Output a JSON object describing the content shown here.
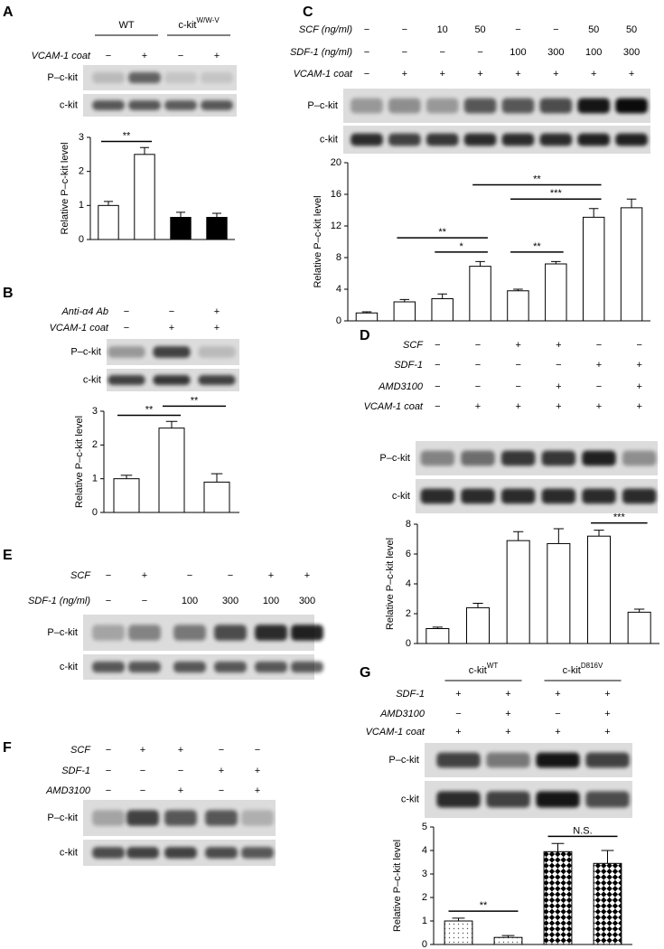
{
  "panels": [
    {
      "letter": "A",
      "headers": [
        {
          "text": "WT",
          "lanes": [
            0,
            1
          ]
        },
        {
          "text": "c-kit",
          "sup": "W/W-V",
          "lanes": [
            2,
            3
          ]
        }
      ],
      "conditions": [
        {
          "label": "VCAM-1 coat",
          "marks": [
            "−",
            "+",
            "−",
            "+"
          ]
        }
      ],
      "blot_labels": [
        "P–c-kit",
        "c-kit"
      ]
    },
    {
      "letter": "B",
      "conditions": [
        {
          "label": "Anti-α4 Ab",
          "marks": [
            "−",
            "−",
            "+"
          ]
        },
        {
          "label": "VCAM-1 coat",
          "marks": [
            "−",
            "+",
            "+"
          ]
        }
      ],
      "blot_labels": [
        "P–c-kit",
        "c-kit"
      ]
    },
    {
      "letter": "C",
      "conditions": [
        {
          "label": "SCF (ng/ml)",
          "marks": [
            "−",
            "−",
            "10",
            "50",
            "−",
            "−",
            "50",
            "50"
          ]
        },
        {
          "label": "SDF-1 (ng/ml)",
          "marks": [
            "−",
            "−",
            "−",
            "−",
            "100",
            "300",
            "100",
            "300"
          ]
        },
        {
          "label": "VCAM-1 coat",
          "marks": [
            "−",
            "+",
            "+",
            "+",
            "+",
            "+",
            "+",
            "+"
          ]
        }
      ],
      "blot_labels": [
        "P–c-kit",
        "c-kit"
      ]
    },
    {
      "letter": "D",
      "conditions": [
        {
          "label": "SCF",
          "marks": [
            "−",
            "−",
            "+",
            "+",
            "−",
            "−"
          ]
        },
        {
          "label": "SDF-1",
          "marks": [
            "−",
            "−",
            "−",
            "−",
            "+",
            "+"
          ]
        },
        {
          "label": "AMD3100",
          "marks": [
            "−",
            "−",
            "−",
            "+",
            "−",
            "+"
          ]
        },
        {
          "label": "VCAM-1 coat",
          "marks": [
            "−",
            "+",
            "+",
            "+",
            "+",
            "+"
          ]
        }
      ],
      "blot_labels": [
        "P–c-kit",
        "c-kit"
      ]
    },
    {
      "letter": "E",
      "conditions": [
        {
          "label": "SCF",
          "marks": [
            "−",
            "+",
            "−",
            "−",
            "+",
            "+"
          ]
        },
        {
          "label": "SDF-1 (ng/ml)",
          "marks": [
            "−",
            "−",
            "100",
            "300",
            "100",
            "300"
          ]
        }
      ],
      "blot_labels": [
        "P–c-kit",
        "c-kit"
      ]
    },
    {
      "letter": "F",
      "conditions": [
        {
          "label": "SCF",
          "marks": [
            "−",
            "+",
            "+",
            "−",
            "−"
          ]
        },
        {
          "label": "SDF-1",
          "marks": [
            "−",
            "−",
            "−",
            "+",
            "+"
          ]
        },
        {
          "label": "AMD3100",
          "marks": [
            "−",
            "−",
            "+",
            "−",
            "+"
          ]
        }
      ],
      "blot_labels": [
        "P–c-kit",
        "c-kit"
      ]
    },
    {
      "letter": "G",
      "headers": [
        {
          "text": "c-kit",
          "sup": "WT",
          "lanes": [
            0,
            1
          ]
        },
        {
          "text": "c-kit",
          "sup": "D816V",
          "lanes": [
            2,
            3
          ]
        }
      ],
      "conditions": [
        {
          "label": "SDF-1",
          "marks": [
            "+",
            "+",
            "+",
            "+"
          ]
        },
        {
          "label": "AMD3100",
          "marks": [
            "−",
            "+",
            "−",
            "+"
          ]
        },
        {
          "label": "VCAM-1 coat",
          "marks": [
            "+",
            "+",
            "+",
            "+"
          ]
        }
      ],
      "blot_labels": [
        "P–c-kit",
        "c-kit"
      ]
    }
  ],
  "chart_data": [
    {
      "type": "bar",
      "ylabel": "Relative P–c-kit level",
      "ylim": [
        0,
        3
      ],
      "yticks": [
        0,
        1,
        2,
        3
      ],
      "values": [
        1,
        2.5,
        0.65,
        0.65
      ],
      "errors": [
        0.12,
        0.2,
        0.15,
        0.12
      ],
      "fills": [
        "white",
        "white",
        "black",
        "black"
      ],
      "annotations": [
        {
          "text": "**",
          "from": 0,
          "to": 1
        }
      ]
    },
    {
      "type": "bar",
      "ylabel": "Relative P–c-kit level",
      "ylim": [
        0,
        3
      ],
      "yticks": [
        0,
        1,
        2,
        3
      ],
      "values": [
        1,
        2.5,
        0.9
      ],
      "errors": [
        0.1,
        0.2,
        0.25
      ],
      "fills": [
        "white",
        "white",
        "white"
      ],
      "annotations": [
        {
          "text": "**",
          "from": 0,
          "to": 1
        },
        {
          "text": "**",
          "from": 1,
          "to": 2
        }
      ]
    },
    {
      "type": "bar",
      "ylabel": "Relative P–c-kit level",
      "ylim": [
        0,
        20
      ],
      "yticks": [
        0,
        4,
        8,
        12,
        16,
        20
      ],
      "values": [
        1,
        2.4,
        2.8,
        6.9,
        3.8,
        7.2,
        13.1,
        14.3
      ],
      "errors": [
        0.15,
        0.3,
        0.6,
        0.6,
        0.2,
        0.3,
        1.1,
        1.1
      ],
      "fills": [
        "white",
        "white",
        "white",
        "white",
        "white",
        "white",
        "white",
        "white"
      ],
      "annotations": [
        {
          "text": "*",
          "from": 2,
          "to": 3
        },
        {
          "text": "**",
          "from": 4,
          "to": 5
        },
        {
          "text": "**",
          "from": 1,
          "to": 3
        },
        {
          "text": "***",
          "from": 4,
          "to": 6
        },
        {
          "text": "**",
          "from": 3,
          "to": 6
        }
      ]
    },
    {
      "type": "bar",
      "ylabel": "Relative P–c-kit level",
      "ylim": [
        0,
        8
      ],
      "yticks": [
        0,
        2,
        4,
        6,
        8
      ],
      "values": [
        1,
        2.4,
        6.9,
        6.7,
        7.2,
        2.1
      ],
      "errors": [
        0.1,
        0.3,
        0.6,
        1,
        0.4,
        0.2
      ],
      "fills": [
        "white",
        "white",
        "white",
        "white",
        "white",
        "white"
      ],
      "annotations": [
        {
          "text": "***",
          "from": 4,
          "to": 5
        }
      ]
    },
    {
      "type": "bar",
      "ylabel": "Relative P–c-kit level",
      "ylim": [
        0,
        5
      ],
      "yticks": [
        0,
        1,
        2,
        3,
        4,
        5
      ],
      "values": [
        1,
        0.3,
        3.95,
        3.45
      ],
      "errors": [
        0.12,
        0.08,
        0.35,
        0.55
      ],
      "fills": [
        "dotted",
        "dotted",
        "checkered",
        "checkered"
      ],
      "annotations": [
        {
          "text": "**",
          "from": 0,
          "to": 1
        },
        {
          "text": "N.S.",
          "from": 2,
          "to": 3
        }
      ]
    }
  ]
}
